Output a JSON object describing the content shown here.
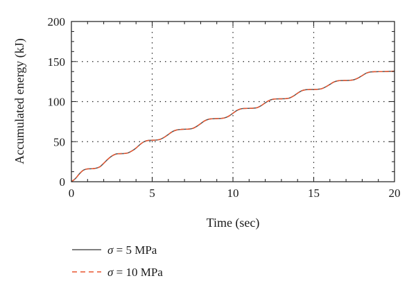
{
  "chart_data": {
    "type": "line",
    "title": "",
    "xlabel": "Time (sec)",
    "ylabel": "Accumulated energy (kJ)",
    "xlim": [
      0,
      20
    ],
    "ylim": [
      0,
      200
    ],
    "x_ticks": [
      0,
      5,
      10,
      15,
      20
    ],
    "y_ticks": [
      0,
      50,
      100,
      150,
      200
    ],
    "x_tick_labels": [
      "0",
      "5",
      "10",
      "15",
      "20"
    ],
    "y_tick_labels": [
      "0",
      "50",
      "100",
      "150",
      "200"
    ],
    "grid": {
      "style": "dotted",
      "x_lines": [
        5,
        10,
        15
      ],
      "y_lines": [
        50,
        100,
        150
      ]
    },
    "legend_placement": "bottom-left, below plot",
    "series": [
      {
        "name": "σ = 5 MPa",
        "legend_symbol": "σ",
        "legend_rest": " = 5 MPa",
        "color": "#555555",
        "dash": "solid",
        "x": [
          0,
          0.25,
          0.5,
          0.75,
          1,
          1.25,
          1.5,
          1.75,
          2,
          2.25,
          2.5,
          2.75,
          3,
          3.25,
          3.5,
          3.75,
          4,
          4.25,
          4.5,
          4.75,
          5,
          5.25,
          5.5,
          5.75,
          6,
          6.25,
          6.5,
          6.75,
          7,
          7.25,
          7.5,
          7.75,
          8,
          8.25,
          8.5,
          8.75,
          9,
          9.25,
          9.5,
          9.75,
          10,
          10.25,
          10.5,
          10.75,
          11,
          11.25,
          11.5,
          11.75,
          12,
          12.25,
          12.5,
          12.75,
          13,
          13.25,
          13.5,
          13.75,
          14,
          14.25,
          14.5,
          14.75,
          15,
          15.25,
          15.5,
          15.75,
          16,
          16.25,
          16.5,
          16.75,
          17,
          17.25,
          17.5,
          17.75,
          18,
          18.25,
          18.5,
          18.75,
          19,
          19.25,
          19.5,
          19.75,
          20
        ],
        "y": [
          0,
          4,
          10,
          14.5,
          16,
          16.2,
          16.8,
          18.5,
          23,
          28,
          32,
          34.5,
          35,
          35.2,
          36,
          38.5,
          42,
          46.5,
          50,
          51.5,
          51.8,
          52,
          53,
          55.5,
          59,
          62.5,
          64.5,
          65.2,
          65.5,
          65.7,
          66.5,
          69,
          72.5,
          76,
          78,
          78.6,
          78.8,
          79,
          79.8,
          82,
          85.5,
          89,
          91,
          91.5,
          91.6,
          91.8,
          92.5,
          95,
          98.5,
          101.5,
          103,
          103.4,
          103.5,
          103.7,
          104.5,
          107,
          110.5,
          113.5,
          114.8,
          115.1,
          115.2,
          115.4,
          116.2,
          118.5,
          121.5,
          124.5,
          126,
          126.3,
          126.4,
          126.6,
          127.4,
          129.5,
          132.5,
          135.5,
          137,
          137.3,
          137.4,
          137.5,
          137.6,
          137.8,
          138
        ]
      },
      {
        "name": "σ = 10 MPa",
        "legend_symbol": "σ",
        "legend_rest": " = 10 MPa",
        "color": "#e8552f",
        "dash": "dashed",
        "x": [
          0,
          0.25,
          0.5,
          0.75,
          1,
          1.25,
          1.5,
          1.75,
          2,
          2.25,
          2.5,
          2.75,
          3,
          3.25,
          3.5,
          3.75,
          4,
          4.25,
          4.5,
          4.75,
          5,
          5.25,
          5.5,
          5.75,
          6,
          6.25,
          6.5,
          6.75,
          7,
          7.25,
          7.5,
          7.75,
          8,
          8.25,
          8.5,
          8.75,
          9,
          9.25,
          9.5,
          9.75,
          10,
          10.25,
          10.5,
          10.75,
          11,
          11.25,
          11.5,
          11.75,
          12,
          12.25,
          12.5,
          12.75,
          13,
          13.25,
          13.5,
          13.75,
          14,
          14.25,
          14.5,
          14.75,
          15,
          15.25,
          15.5,
          15.75,
          16,
          16.25,
          16.5,
          16.75,
          17,
          17.25,
          17.5,
          17.75,
          18,
          18.25,
          18.5,
          18.75,
          19,
          19.25,
          19.5,
          19.75,
          20
        ],
        "y": [
          0,
          4,
          10,
          14.5,
          16,
          16.2,
          16.8,
          18.5,
          23,
          28,
          32,
          34.5,
          35,
          35.2,
          36,
          38.5,
          42,
          46.5,
          50,
          51.5,
          51.8,
          52,
          53,
          55.5,
          59,
          62.5,
          64.5,
          65.2,
          65.5,
          65.7,
          66.5,
          69,
          72.5,
          76,
          78,
          78.6,
          78.8,
          79,
          79.8,
          82,
          85.5,
          89,
          91,
          91.5,
          91.6,
          91.8,
          92.5,
          95,
          98.5,
          101.5,
          103,
          103.4,
          103.5,
          103.7,
          104.5,
          107,
          110.5,
          113.5,
          114.8,
          115.1,
          115.2,
          115.4,
          116.2,
          118.5,
          121.5,
          124.5,
          126,
          126.3,
          126.4,
          126.6,
          127.4,
          129.5,
          132.5,
          135.5,
          137,
          137.3,
          137.4,
          137.5,
          137.6,
          137.8,
          138
        ]
      }
    ]
  }
}
